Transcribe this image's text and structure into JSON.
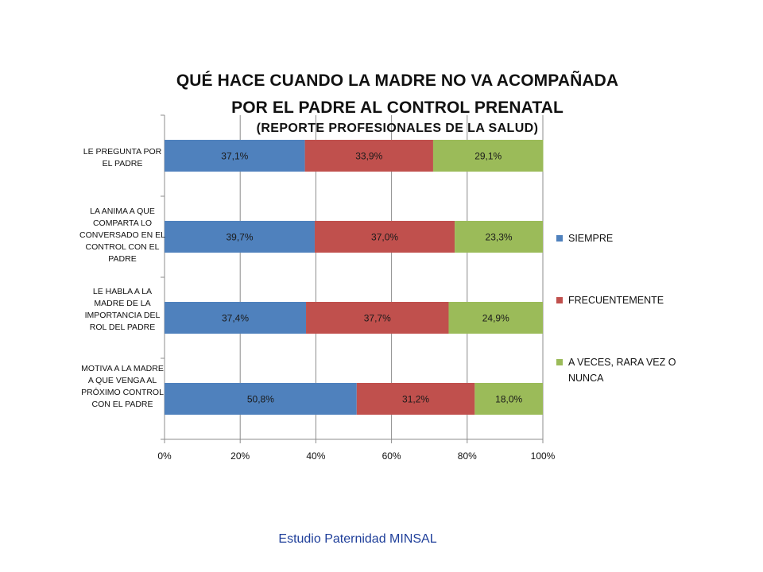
{
  "chart_data": {
    "type": "bar",
    "orientation": "horizontal",
    "stacked": "percent",
    "title_line1": "QUÉ HACE CUANDO LA MADRE NO VA ACOMPAÑADA",
    "title_line2": "POR EL PADRE AL CONTROL PRENATAL",
    "subtitle": "(REPORTE PROFESIONALES DE LA SALUD)",
    "categories": [
      "LE PREGUNTA POR EL PADRE",
      "LA ANIMA A QUE COMPARTA LO CONVERSADO EN EL CONTROL CON EL PADRE",
      "LE HABLA A LA MADRE DE LA IMPORTANCIA DEL ROL DEL PADRE",
      "MOTIVA A LA MADRE A QUE VENGA AL PRÓXIMO CONTROL CON EL PADRE"
    ],
    "series": [
      {
        "name": "SIEMPRE",
        "color": "#4f81bd",
        "values": [
          37.1,
          39.7,
          37.4,
          50.8
        ],
        "labels": [
          "37,1%",
          "39,7%",
          "37,4%",
          "50,8%"
        ]
      },
      {
        "name": "FRECUENTEMENTE",
        "color": "#c0504d",
        "values": [
          33.9,
          37.0,
          37.7,
          31.2
        ],
        "labels": [
          "33,9%",
          "37,0%",
          "37,7%",
          "31,2%"
        ]
      },
      {
        "name": "A VECES, RARA VEZ O NUNCA",
        "color": "#9bbb59",
        "values": [
          29.1,
          23.3,
          24.9,
          18.0
        ],
        "labels": [
          "29,1%",
          "23,3%",
          "24,9%",
          "18,0%"
        ]
      }
    ],
    "xticks": [
      "0%",
      "20%",
      "40%",
      "60%",
      "80%",
      "100%"
    ],
    "xlim": [
      0,
      100
    ],
    "grid": true,
    "legend_position": "right"
  },
  "footer": "Estudio Paternidad MINSAL"
}
